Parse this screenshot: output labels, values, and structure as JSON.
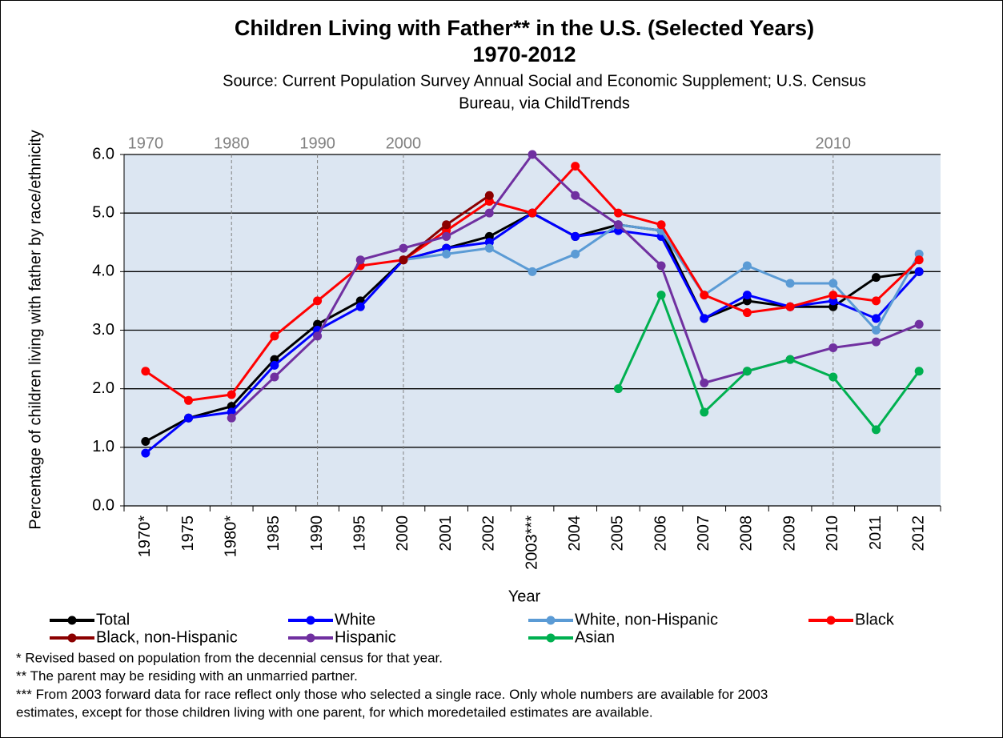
{
  "chart_data": {
    "type": "line",
    "title": "Children Living with Father** in the U.S. (Selected Years)",
    "title_line2": "1970-2012",
    "subtitle": "Source: Current Population Survey Annual Social and Economic Supplement; U.S. Census",
    "subtitle_line2": "Bureau, via ChildTrends",
    "y_label": "Percentage of children living with father by race/ethnicity",
    "x_label": "Year",
    "categories": [
      "1970*",
      "1975",
      "1980*",
      "1985",
      "1990",
      "1995",
      "2000",
      "2001",
      "2002",
      "2003***",
      "2004",
      "2005",
      "2006",
      "2007",
      "2008",
      "2009",
      "2010",
      "2011",
      "2012"
    ],
    "decade_markers": [
      {
        "label": "1970",
        "at": "1970*"
      },
      {
        "label": "1980",
        "at": "1980*"
      },
      {
        "label": "1990",
        "at": "1990"
      },
      {
        "label": "2000",
        "at": "2000"
      },
      {
        "label": "2010",
        "at": "2010"
      }
    ],
    "ylim": [
      0,
      6
    ],
    "yticks": [
      {
        "value": 0,
        "label": "0.0"
      },
      {
        "value": 1,
        "label": "1.0"
      },
      {
        "value": 2,
        "label": "2.0"
      },
      {
        "value": 3,
        "label": "3.0"
      },
      {
        "value": 4,
        "label": "4.0"
      },
      {
        "value": 5,
        "label": "5.0"
      },
      {
        "value": 6,
        "label": "6.0"
      }
    ],
    "grid": true,
    "series": [
      {
        "name": "Total",
        "color": "#000000",
        "values": [
          1.1,
          1.5,
          1.7,
          2.5,
          3.1,
          3.5,
          4.2,
          4.4,
          4.6,
          5.0,
          4.6,
          4.8,
          4.7,
          3.2,
          3.5,
          3.4,
          3.4,
          3.9,
          4.0
        ]
      },
      {
        "name": "White",
        "color": "#0000ff",
        "values": [
          0.9,
          1.5,
          1.6,
          2.4,
          3.0,
          3.4,
          4.2,
          4.4,
          4.5,
          5.0,
          4.6,
          4.7,
          4.6,
          3.2,
          3.6,
          3.4,
          3.5,
          3.2,
          4.0
        ]
      },
      {
        "name": "White, non-Hispanic",
        "color": "#5b9bd5",
        "values": [
          null,
          null,
          null,
          null,
          null,
          null,
          4.2,
          4.3,
          4.4,
          4.0,
          4.3,
          4.8,
          4.7,
          3.6,
          4.1,
          3.8,
          3.8,
          3.0,
          4.3
        ]
      },
      {
        "name": "Black",
        "color": "#ff0000",
        "values": [
          2.3,
          1.8,
          1.9,
          2.9,
          3.5,
          4.1,
          4.2,
          4.7,
          5.2,
          5.0,
          5.8,
          5.0,
          4.8,
          3.6,
          3.3,
          3.4,
          3.6,
          3.5,
          4.2
        ]
      },
      {
        "name": "Black, non-Hispanic",
        "color": "#8b0000",
        "values": [
          null,
          null,
          null,
          null,
          null,
          null,
          4.2,
          4.8,
          5.3,
          null,
          null,
          null,
          null,
          null,
          null,
          null,
          null,
          null,
          null
        ]
      },
      {
        "name": "Hispanic",
        "color": "#7030a0",
        "values": [
          null,
          null,
          1.5,
          2.2,
          2.9,
          4.2,
          4.4,
          4.6,
          5.0,
          6.0,
          5.3,
          4.8,
          4.1,
          2.1,
          2.3,
          2.5,
          2.7,
          2.8,
          3.1
        ]
      },
      {
        "name": "Asian",
        "color": "#00b050",
        "values": [
          null,
          null,
          null,
          null,
          null,
          null,
          null,
          null,
          null,
          null,
          null,
          2.0,
          3.6,
          1.6,
          2.3,
          2.5,
          2.2,
          1.3,
          2.3
        ]
      }
    ],
    "footnotes": [
      "* Revised based on population from the decennial census for that year.",
      "** The parent may be residing with an unmarried partner.",
      "*** From 2003 forward data for race reflect only those who selected a single race. Only whole numbers are available for 2003",
      "estimates, except for those children living with one parent, for which moredetailed estimates are available."
    ]
  }
}
